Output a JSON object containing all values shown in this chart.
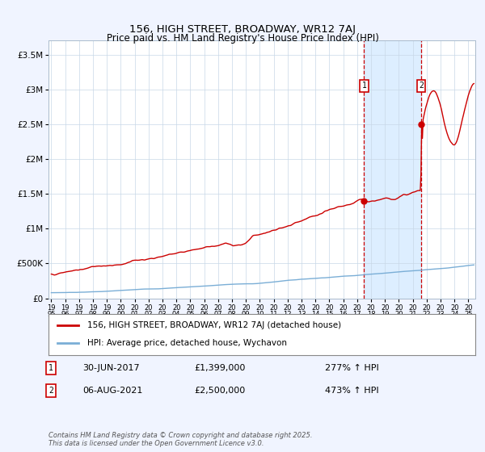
{
  "title": "156, HIGH STREET, BROADWAY, WR12 7AJ",
  "subtitle": "Price paid vs. HM Land Registry's House Price Index (HPI)",
  "xmin": 1994.8,
  "xmax": 2025.5,
  "ymin": 0,
  "ymax": 3700000,
  "yticks": [
    0,
    500000,
    1000000,
    1500000,
    2000000,
    2500000,
    3000000,
    3500000
  ],
  "ytick_labels": [
    "£0",
    "£500K",
    "£1M",
    "£1.5M",
    "£2M",
    "£2.5M",
    "£3M",
    "£3.5M"
  ],
  "xticks": [
    1995,
    1996,
    1997,
    1998,
    1999,
    2000,
    2001,
    2002,
    2003,
    2004,
    2005,
    2006,
    2007,
    2008,
    2009,
    2010,
    2011,
    2012,
    2013,
    2014,
    2015,
    2016,
    2017,
    2018,
    2019,
    2020,
    2021,
    2022,
    2023,
    2024,
    2025
  ],
  "sale1_x": 2017.5,
  "sale1_y": 1399000,
  "sale1_label": "1",
  "sale2_x": 2021.6,
  "sale2_y": 2500000,
  "sale2_label": "2",
  "annotation1_date": "30-JUN-2017",
  "annotation1_price": "£1,399,000",
  "annotation1_hpi": "277% ↑ HPI",
  "annotation2_date": "06-AUG-2021",
  "annotation2_price": "£2,500,000",
  "annotation2_hpi": "473% ↑ HPI",
  "legend_label1": "156, HIGH STREET, BROADWAY, WR12 7AJ (detached house)",
  "legend_label2": "HPI: Average price, detached house, Wychavon",
  "footer": "Contains HM Land Registry data © Crown copyright and database right 2025.\nThis data is licensed under the Open Government Licence v3.0.",
  "line1_color": "#cc0000",
  "line2_color": "#7aaed6",
  "shade_color": "#ddeeff",
  "bg_color": "#f0f4ff",
  "plot_bg": "#ffffff",
  "grid_color": "#c8d8e8"
}
